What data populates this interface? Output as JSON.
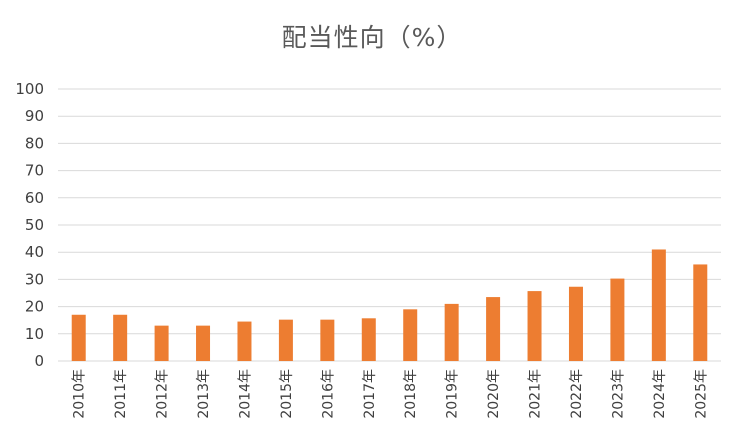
{
  "chart_data": {
    "type": "bar",
    "title": "配当性向（%）",
    "xlabel": "",
    "ylabel": "",
    "categories": [
      "2010年",
      "2011年",
      "2012年",
      "2013年",
      "2014年",
      "2015年",
      "2016年",
      "2017年",
      "2018年",
      "2019年",
      "2020年",
      "2021年",
      "2022年",
      "2023年",
      "2024年",
      "2025年"
    ],
    "values": [
      17,
      17,
      13,
      13,
      14.5,
      15.2,
      15.2,
      15.7,
      19,
      21,
      23.5,
      25.7,
      27.3,
      30.3,
      41,
      35.5
    ],
    "ylim": [
      0,
      100
    ],
    "yticks": [
      "0",
      "10",
      "20",
      "30",
      "40",
      "50",
      "60",
      "70",
      "80",
      "90",
      "100"
    ],
    "grid": true,
    "legend": "none",
    "bar_color": "#ED7D31",
    "grid_color": "#D9D9D9"
  }
}
